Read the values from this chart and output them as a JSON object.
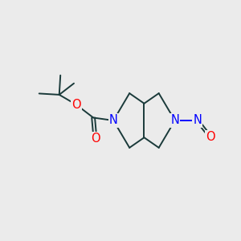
{
  "bg_color": "#ebebeb",
  "bond_color": "#1a3a3a",
  "n_color": "#0000ff",
  "o_color": "#ff0000",
  "bond_width": 1.4,
  "font_size": 10.5,
  "figsize": [
    3.0,
    3.0
  ],
  "dpi": 100,
  "xlim": [
    0,
    10
  ],
  "ylim": [
    0,
    10
  ]
}
